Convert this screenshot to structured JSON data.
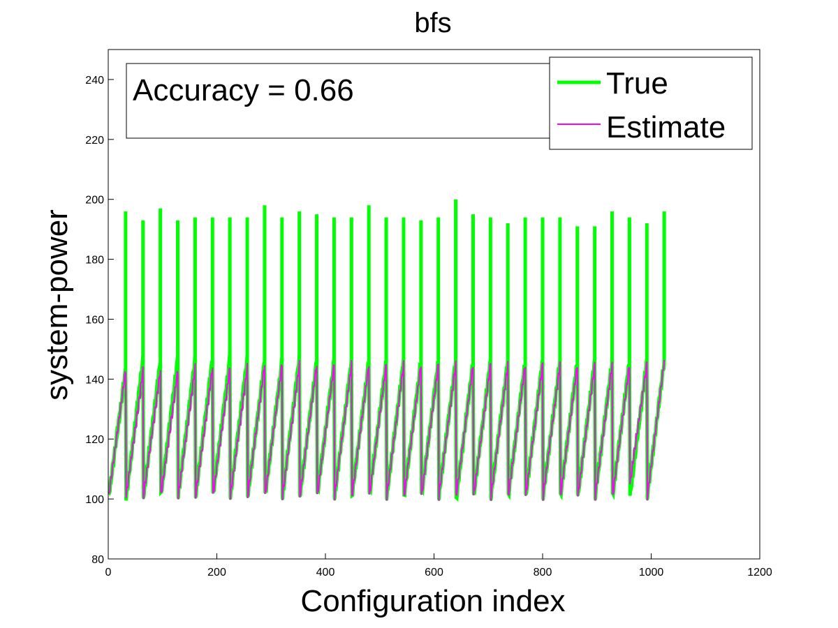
{
  "chart_data": {
    "type": "line",
    "title": "bfs",
    "xlabel": "Configuration index",
    "ylabel": "system-power",
    "xlim": [
      0,
      1200
    ],
    "ylim": [
      80,
      250
    ],
    "xticks": [
      0,
      200,
      400,
      600,
      800,
      1000,
      1200
    ],
    "yticks": [
      80,
      100,
      120,
      140,
      160,
      180,
      200,
      220,
      240
    ],
    "grid": false,
    "legend_position": "top-right",
    "annotation": "Accuracy = 0.66",
    "cycle_length": 32,
    "num_cycles": 32,
    "series": [
      {
        "name": "True",
        "color": "#00ff00",
        "style": "thick",
        "cycle_start": [
          101,
          100,
          101,
          101,
          101,
          101,
          101,
          101,
          101,
          101,
          101,
          101,
          101,
          101,
          101,
          101,
          101,
          101,
          101,
          101,
          100,
          101,
          101,
          101,
          101,
          101,
          101,
          101,
          101,
          101,
          101,
          101
        ],
        "cycle_end": [
          143,
          147,
          146,
          147,
          147,
          147,
          147,
          147,
          146,
          146,
          147,
          146,
          146,
          146,
          146,
          146,
          146,
          146,
          146,
          146,
          146,
          146,
          146,
          146,
          146,
          146,
          146,
          146,
          146,
          146,
          146,
          146
        ],
        "cycle_peak": [
          196,
          193,
          197,
          193,
          194,
          194,
          194,
          194,
          198,
          194,
          196,
          195,
          194,
          194,
          198,
          194,
          194,
          193,
          194,
          200,
          195,
          194,
          192,
          194,
          194,
          194,
          191,
          191,
          196,
          194,
          192,
          196
        ]
      },
      {
        "name": "Estimate",
        "color": "#ff00ff",
        "style": "thin",
        "cycle_start": [
          101,
          101,
          101,
          101,
          101,
          101,
          101,
          101,
          101,
          101,
          101,
          101,
          101,
          101,
          101,
          101,
          101,
          101,
          101,
          101,
          101,
          101,
          101,
          101,
          101,
          101,
          101,
          101,
          101,
          101,
          105,
          101
        ],
        "cycle_end": [
          143,
          143,
          143,
          143,
          144,
          144,
          144,
          144,
          145,
          145,
          145,
          145,
          145,
          145,
          145,
          145,
          145,
          145,
          145,
          145,
          145,
          145,
          145,
          145,
          145,
          145,
          145,
          145,
          145,
          145,
          145,
          146
        ]
      }
    ]
  }
}
